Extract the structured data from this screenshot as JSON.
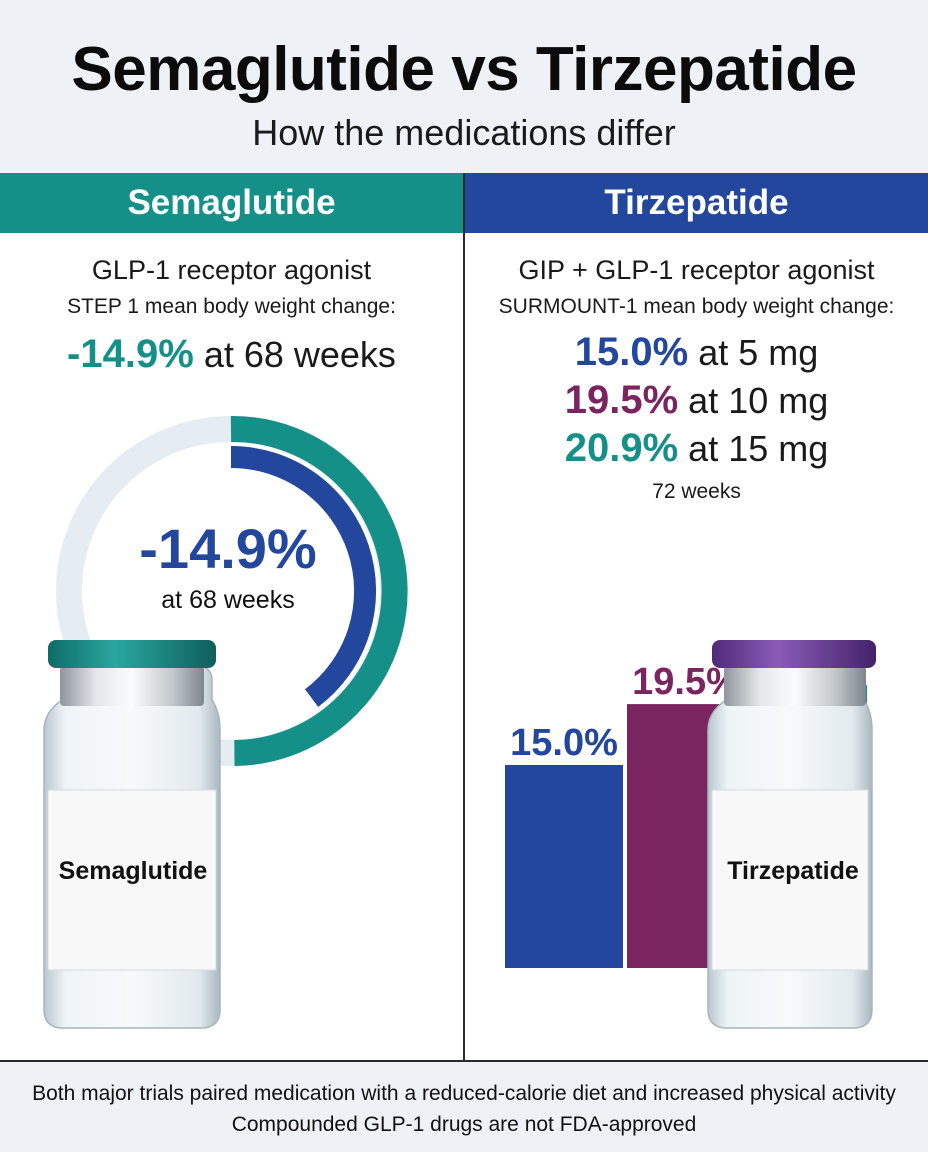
{
  "header": {
    "title": "Semaglutide vs Tirzepatide",
    "subtitle": "How the medications differ"
  },
  "colors": {
    "teal": "#159089",
    "navy": "#22479c",
    "plum": "#7b2560",
    "header_bg": "#eef2f6"
  },
  "semaglutide": {
    "heading": "Semaglutide",
    "drug_class": "GLP-1 receptor agonist",
    "trial_label": "STEP 1 mean body weight change:",
    "result_value": "-14.9%",
    "result_suffix": "at 68 weeks",
    "donut_value": "-14.9%",
    "donut_caption": "at 68 weeks",
    "vial_label": "Semaglutide",
    "vial_cap_color": "teal"
  },
  "tirzepatide": {
    "heading": "Tirzepatide",
    "drug_class": "GIP + GLP-1 receptor agonist",
    "trial_label": "SURMOUNT-1 mean body weight change:",
    "results": [
      {
        "value": "15.0%",
        "suffix": "at 5 mg",
        "color": "navy"
      },
      {
        "value": "19.5%",
        "suffix": "at 10 mg",
        "color": "plum"
      },
      {
        "value": "20.9%",
        "suffix": "at 15 mg",
        "color": "teal"
      }
    ],
    "duration": "72 weeks",
    "vial_label": "Tirzepatide",
    "vial_cap_color": "plum"
  },
  "chart_data": [
    {
      "type": "pie",
      "variant": "donut",
      "series": [
        {
          "name": "",
          "value": 14.9,
          "unit": "%",
          "color": "#22479c"
        },
        {
          "name": "",
          "value": 14.9,
          "unit": "%",
          "color": "#159089"
        }
      ],
      "center_label": "-14.9%",
      "center_caption": "at 68 weeks"
    },
    {
      "type": "bar",
      "categories": [
        "",
        "",
        ""
      ],
      "values": [
        15.0,
        19.5,
        20.9
      ],
      "data_labels": [
        "15.0%",
        "19.5%",
        "20.9%"
      ],
      "colors": [
        "#22479c",
        "#7b2560",
        "#159089"
      ],
      "ylim": [
        0,
        30
      ],
      "grid": false
    }
  ],
  "footer": {
    "line1": "Both major trials paired medication with a reduced-calorie diet and increased physical activity",
    "line2": "Compounded GLP-1 drugs are not FDA-approved"
  }
}
